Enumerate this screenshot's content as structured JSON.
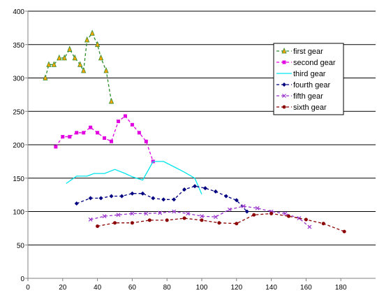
{
  "chart_data": {
    "type": "line",
    "title": "",
    "xlabel": "",
    "ylabel": "",
    "xlim": [
      0,
      200
    ],
    "ylim": [
      0,
      400
    ],
    "xticks": [
      0,
      20,
      40,
      60,
      80,
      100,
      120,
      140,
      160,
      180
    ],
    "yticks": [
      0,
      50,
      100,
      150,
      200,
      250,
      300,
      350,
      400
    ],
    "grid": "horizontal",
    "legend_position": "right",
    "series": [
      {
        "name": "first gear",
        "color": "#2e8b2e",
        "marker": "triangle",
        "marker_fill": "#ffa500",
        "dash": "4,3",
        "x": [
          10,
          12,
          15,
          18,
          21,
          24,
          27,
          30,
          32,
          34,
          37,
          40,
          42,
          45,
          48
        ],
        "y": [
          300,
          320,
          320,
          330,
          330,
          343,
          330,
          320,
          311,
          357,
          367,
          350,
          330,
          311,
          265
        ]
      },
      {
        "name": "second gear",
        "color": "#e000e0",
        "marker": "square",
        "marker_fill": "#e000e0",
        "dash": "4,3",
        "x": [
          16,
          20,
          24,
          28,
          32,
          36,
          40,
          44,
          48,
          52,
          56,
          60,
          64,
          68,
          72
        ],
        "y": [
          197,
          212,
          212,
          218,
          218,
          226,
          218,
          210,
          205,
          235,
          243,
          230,
          218,
          205,
          175
        ]
      },
      {
        "name": "third gear",
        "color": "#00e5ee",
        "marker": "none",
        "marker_fill": "#00e5ee",
        "dash": "",
        "x": [
          22,
          28,
          34,
          38,
          44,
          50,
          56,
          60,
          66,
          72,
          78,
          84,
          90,
          96,
          100
        ],
        "y": [
          142,
          153,
          153,
          157,
          157,
          163,
          157,
          152,
          147,
          175,
          175,
          167,
          159,
          150,
          126
        ]
      },
      {
        "name": "fourth gear",
        "color": "#000080",
        "marker": "diamond",
        "marker_fill": "#000080",
        "dash": "4,3",
        "x": [
          28,
          36,
          42,
          48,
          54,
          60,
          66,
          72,
          78,
          84,
          90,
          96,
          102,
          108,
          114,
          120,
          126
        ],
        "y": [
          112,
          120,
          120,
          123,
          123,
          127,
          127,
          120,
          118,
          118,
          133,
          138,
          135,
          130,
          123,
          117,
          100
        ]
      },
      {
        "name": "fifth gear",
        "color": "#9932cc",
        "marker": "x",
        "marker_fill": "#9932cc",
        "dash": "4,3",
        "x": [
          36,
          44,
          52,
          60,
          68,
          76,
          84,
          92,
          100,
          108,
          116,
          124,
          132,
          140,
          148,
          156,
          162
        ],
        "y": [
          88,
          93,
          95,
          97,
          97,
          98,
          100,
          97,
          93,
          92,
          103,
          108,
          105,
          100,
          97,
          90,
          77
        ]
      },
      {
        "name": "sixth gear",
        "color": "#8b0000",
        "marker": "circle",
        "marker_fill": "#8b0000",
        "dash": "4,3",
        "x": [
          40,
          50,
          60,
          70,
          80,
          90,
          100,
          110,
          120,
          130,
          140,
          150,
          160,
          170,
          182
        ],
        "y": [
          78,
          83,
          83,
          87,
          87,
          90,
          87,
          83,
          82,
          95,
          97,
          93,
          88,
          82,
          70
        ]
      }
    ]
  }
}
